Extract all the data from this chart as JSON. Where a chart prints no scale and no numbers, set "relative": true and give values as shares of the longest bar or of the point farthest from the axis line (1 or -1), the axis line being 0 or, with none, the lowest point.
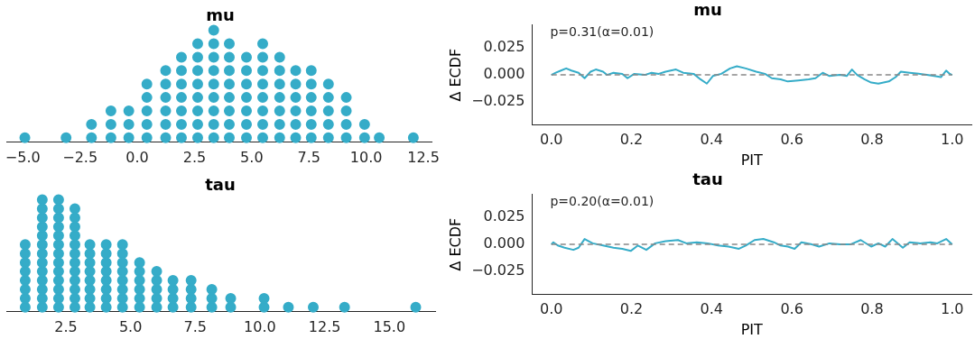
{
  "chart_data": [
    {
      "type": "scatter",
      "title": "mu",
      "relative": true,
      "marker": "circle",
      "color": "#35acc8",
      "xlim": [
        -5.72,
        12.89
      ],
      "xticks": [
        {
          "value": -5,
          "label": "−5.0"
        },
        {
          "value": -2.5,
          "label": "−2.5"
        },
        {
          "value": 0,
          "label": "0.0"
        },
        {
          "value": 2.5,
          "label": "2.5"
        },
        {
          "value": 5,
          "label": "5.0"
        },
        {
          "value": 7.5,
          "label": "7.5"
        },
        {
          "value": 10,
          "label": "10.0"
        },
        {
          "value": 12.5,
          "label": "12.5"
        }
      ],
      "x": [
        -4.91,
        -3.11,
        -2.0,
        -2.0,
        -1.15,
        -1.15,
        -1.15,
        -0.37,
        -0.37,
        -0.37,
        0.42,
        0.42,
        0.42,
        0.42,
        0.42,
        1.24,
        1.24,
        1.24,
        1.24,
        1.24,
        1.24,
        1.93,
        1.93,
        1.93,
        1.93,
        1.93,
        1.93,
        1.93,
        2.64,
        2.64,
        2.64,
        2.64,
        2.64,
        2.64,
        2.64,
        2.64,
        3.34,
        3.34,
        3.34,
        3.34,
        3.34,
        3.34,
        3.34,
        3.34,
        3.34,
        4.02,
        4.02,
        4.02,
        4.02,
        4.02,
        4.02,
        4.02,
        4.02,
        4.77,
        4.77,
        4.77,
        4.77,
        4.77,
        4.77,
        4.77,
        5.48,
        5.48,
        5.48,
        5.48,
        5.48,
        5.48,
        5.48,
        5.48,
        6.22,
        6.22,
        6.22,
        6.22,
        6.22,
        6.22,
        6.22,
        6.92,
        6.92,
        6.92,
        6.92,
        6.92,
        6.92,
        7.6,
        7.6,
        7.6,
        7.6,
        7.6,
        7.6,
        8.35,
        8.35,
        8.35,
        8.35,
        8.35,
        9.13,
        9.13,
        9.13,
        9.13,
        9.93,
        9.93,
        10.57,
        12.06
      ],
      "values": [
        0.04,
        0.04,
        0.04,
        0.16,
        0.04,
        0.16,
        0.28,
        0.04,
        0.16,
        0.28,
        0.04,
        0.16,
        0.28,
        0.4,
        0.52,
        0.04,
        0.16,
        0.28,
        0.4,
        0.52,
        0.64,
        0.04,
        0.16,
        0.28,
        0.4,
        0.52,
        0.64,
        0.76,
        0.04,
        0.16,
        0.28,
        0.4,
        0.52,
        0.64,
        0.76,
        0.88,
        0.04,
        0.16,
        0.28,
        0.4,
        0.52,
        0.64,
        0.76,
        0.88,
        1.0,
        0.04,
        0.16,
        0.28,
        0.4,
        0.52,
        0.64,
        0.76,
        0.88,
        0.04,
        0.16,
        0.28,
        0.4,
        0.52,
        0.64,
        0.76,
        0.04,
        0.16,
        0.28,
        0.4,
        0.52,
        0.64,
        0.76,
        0.88,
        0.04,
        0.16,
        0.28,
        0.4,
        0.52,
        0.64,
        0.76,
        0.04,
        0.16,
        0.28,
        0.4,
        0.52,
        0.64,
        0.04,
        0.16,
        0.28,
        0.4,
        0.52,
        0.64,
        0.04,
        0.16,
        0.28,
        0.4,
        0.52,
        0.04,
        0.16,
        0.28,
        0.4,
        0.04,
        0.16,
        0.04,
        0.04
      ]
    },
    {
      "type": "line",
      "title": "mu",
      "xlabel": "PIT",
      "ylabel": "Δ ECDF",
      "color": "#35acc8",
      "annotations": [
        "p=0.31(α=0.01)"
      ],
      "xlim": [
        -0.048,
        1.048
      ],
      "ylim": [
        -0.046,
        0.046
      ],
      "xticks": [
        {
          "value": 0,
          "label": "0.0"
        },
        {
          "value": 0.2,
          "label": "0.2"
        },
        {
          "value": 0.4,
          "label": "0.4"
        },
        {
          "value": 0.6,
          "label": "0.6"
        },
        {
          "value": 0.8,
          "label": "0.8"
        },
        {
          "value": 1,
          "label": "1.0"
        }
      ],
      "yticks": [
        {
          "value": -0.025,
          "label": "−0.025"
        },
        {
          "value": 0,
          "label": "0.000"
        },
        {
          "value": 0.025,
          "label": "0.025"
        }
      ],
      "ref_lines": [
        {
          "axis": "y",
          "value": 0,
          "color": "#888888",
          "line_style": "dashed"
        }
      ],
      "x": [
        0,
        0.011,
        0.024,
        0.037,
        0.05,
        0.068,
        0.083,
        0.098,
        0.111,
        0.129,
        0.139,
        0.155,
        0.177,
        0.19,
        0.207,
        0.233,
        0.25,
        0.268,
        0.285,
        0.311,
        0.329,
        0.355,
        0.372,
        0.388,
        0.403,
        0.424,
        0.446,
        0.463,
        0.485,
        0.511,
        0.533,
        0.55,
        0.572,
        0.59,
        0.616,
        0.642,
        0.659,
        0.677,
        0.694,
        0.72,
        0.737,
        0.75,
        0.763,
        0.781,
        0.798,
        0.816,
        0.842,
        0.859,
        0.872,
        0.894,
        0.92,
        0.937,
        0.955,
        0.972,
        0.985,
        0.994,
        1.0
      ],
      "values": [
        0,
        0.002,
        0.004,
        0.006,
        0.004,
        0.002,
        -0.003,
        0.003,
        0.005,
        0.003,
        0,
        0.002,
        0.001,
        -0.003,
        0.001,
        0,
        0.002,
        0.001,
        0.003,
        0.005,
        0.002,
        0.001,
        -0.004,
        -0.008,
        -0.001,
        0.001,
        0.006,
        0.008,
        0.006,
        0.003,
        0.001,
        -0.003,
        -0.004,
        -0.006,
        -0.005,
        -0.004,
        -0.003,
        0.002,
        -0.001,
        0,
        -0.001,
        0.005,
        0,
        -0.004,
        -0.007,
        -0.008,
        -0.006,
        -0.002,
        0.003,
        0.002,
        0.001,
        0,
        -0.001,
        -0.002,
        0.004,
        0.001,
        0
      ]
    },
    {
      "type": "scatter",
      "title": "tau",
      "relative": true,
      "marker": "circle",
      "color": "#35acc8",
      "xlim": [
        0.2,
        16.77
      ],
      "xticks": [
        {
          "value": 2.5,
          "label": "2.5"
        },
        {
          "value": 5,
          "label": "5.0"
        },
        {
          "value": 7.5,
          "label": "7.5"
        },
        {
          "value": 10,
          "label": "10.0"
        },
        {
          "value": 12.5,
          "label": "12.5"
        },
        {
          "value": 15,
          "label": "15.0"
        }
      ],
      "x": [
        0.93,
        0.93,
        0.93,
        0.93,
        0.93,
        0.93,
        0.93,
        0.93,
        1.59,
        1.59,
        1.59,
        1.59,
        1.59,
        1.59,
        1.59,
        1.59,
        1.59,
        1.59,
        1.59,
        1.59,
        1.59,
        2.22,
        2.22,
        2.22,
        2.22,
        2.22,
        2.22,
        2.22,
        2.22,
        2.22,
        2.22,
        2.22,
        2.22,
        2.22,
        2.85,
        2.85,
        2.85,
        2.85,
        2.85,
        2.85,
        2.85,
        2.85,
        2.85,
        2.85,
        2.85,
        2.85,
        3.43,
        3.43,
        3.43,
        3.43,
        3.43,
        3.43,
        3.43,
        3.43,
        4.06,
        4.06,
        4.06,
        4.06,
        4.06,
        4.06,
        4.06,
        4.06,
        4.69,
        4.69,
        4.69,
        4.69,
        4.69,
        4.69,
        4.69,
        4.69,
        5.35,
        5.35,
        5.35,
        5.35,
        5.35,
        5.35,
        6.01,
        6.01,
        6.01,
        6.01,
        6.01,
        6.64,
        6.64,
        6.64,
        6.64,
        7.34,
        7.34,
        7.34,
        7.34,
        8.14,
        8.14,
        8.14,
        8.87,
        8.87,
        10.16,
        10.16,
        11.1,
        12.06,
        13.27,
        16.02
      ],
      "values": [
        0.04,
        0.12,
        0.2,
        0.28,
        0.36,
        0.44,
        0.52,
        0.6,
        0.04,
        0.12,
        0.2,
        0.28,
        0.36,
        0.44,
        0.52,
        0.6,
        0.68,
        0.76,
        0.84,
        0.92,
        1.0,
        0.04,
        0.12,
        0.2,
        0.28,
        0.36,
        0.44,
        0.52,
        0.6,
        0.68,
        0.76,
        0.84,
        0.92,
        1.0,
        0.04,
        0.12,
        0.2,
        0.28,
        0.36,
        0.44,
        0.52,
        0.6,
        0.68,
        0.76,
        0.84,
        0.92,
        0.04,
        0.12,
        0.2,
        0.28,
        0.36,
        0.44,
        0.52,
        0.6,
        0.04,
        0.12,
        0.2,
        0.28,
        0.36,
        0.44,
        0.52,
        0.6,
        0.04,
        0.12,
        0.2,
        0.28,
        0.36,
        0.44,
        0.52,
        0.6,
        0.04,
        0.12,
        0.2,
        0.28,
        0.36,
        0.44,
        0.04,
        0.12,
        0.2,
        0.28,
        0.36,
        0.04,
        0.12,
        0.2,
        0.28,
        0.04,
        0.12,
        0.2,
        0.28,
        0.04,
        0.12,
        0.2,
        0.04,
        0.12,
        0.04,
        0.12,
        0.04,
        0.04,
        0.04,
        0.04
      ]
    },
    {
      "type": "line",
      "title": "tau",
      "xlabel": "PIT",
      "ylabel": "Δ ECDF",
      "color": "#35acc8",
      "annotations": [
        "p=0.20(α=0.01)"
      ],
      "xlim": [
        -0.048,
        1.048
      ],
      "ylim": [
        -0.046,
        0.046
      ],
      "xticks": [
        {
          "value": 0,
          "label": "0.0"
        },
        {
          "value": 0.2,
          "label": "0.2"
        },
        {
          "value": 0.4,
          "label": "0.4"
        },
        {
          "value": 0.6,
          "label": "0.6"
        },
        {
          "value": 0.8,
          "label": "0.8"
        },
        {
          "value": 1,
          "label": "1.0"
        }
      ],
      "yticks": [
        {
          "value": -0.025,
          "label": "−0.025"
        },
        {
          "value": 0,
          "label": "0.000"
        },
        {
          "value": 0.025,
          "label": "0.025"
        }
      ],
      "ref_lines": [
        {
          "axis": "y",
          "value": 0,
          "color": "#888888",
          "line_style": "dashed"
        }
      ],
      "x": [
        0,
        0.005,
        0.016,
        0.033,
        0.055,
        0.068,
        0.083,
        0.103,
        0.129,
        0.155,
        0.177,
        0.198,
        0.216,
        0.237,
        0.259,
        0.285,
        0.316,
        0.337,
        0.363,
        0.39,
        0.416,
        0.442,
        0.468,
        0.485,
        0.507,
        0.529,
        0.555,
        0.572,
        0.59,
        0.607,
        0.624,
        0.65,
        0.668,
        0.694,
        0.72,
        0.746,
        0.772,
        0.798,
        0.816,
        0.833,
        0.851,
        0.877,
        0.894,
        0.92,
        0.946,
        0.963,
        0.985,
        1.0
      ],
      "values": [
        0,
        0.002,
        -0.001,
        -0.003,
        -0.005,
        -0.003,
        0.005,
        0.001,
        -0.001,
        -0.003,
        -0.004,
        -0.006,
        -0.001,
        -0.005,
        0.001,
        0.003,
        0.004,
        0.001,
        0.002,
        0.001,
        -0.001,
        -0.002,
        -0.004,
        -0.001,
        0.004,
        0.005,
        0.002,
        -0.001,
        -0.002,
        -0.004,
        0.002,
        0,
        -0.002,
        0.001,
        0,
        0,
        0.004,
        -0.002,
        0.001,
        -0.002,
        0.005,
        -0.003,
        0.002,
        0.001,
        0.002,
        0.001,
        0.005,
        0
      ]
    }
  ]
}
